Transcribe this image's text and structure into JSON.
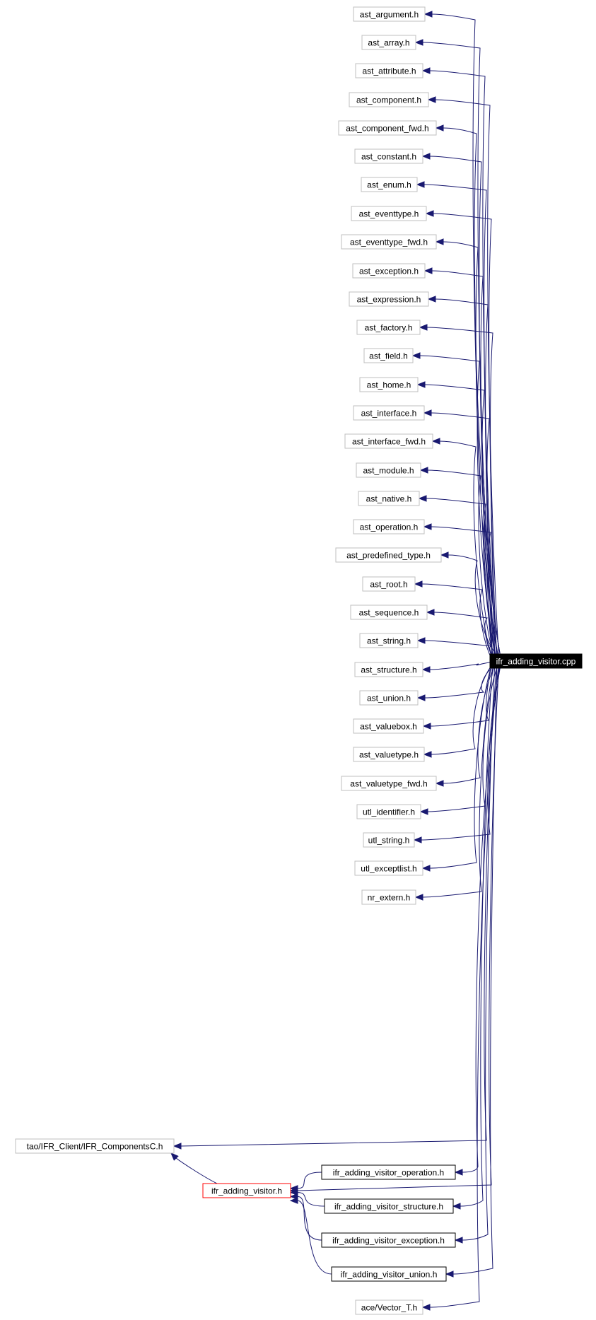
{
  "root": {
    "id": "root",
    "label": "ifr_adding_visitor.cpp"
  },
  "headers": [
    {
      "id": "h0",
      "label": "ast_argument.h"
    },
    {
      "id": "h1",
      "label": "ast_array.h"
    },
    {
      "id": "h2",
      "label": "ast_attribute.h"
    },
    {
      "id": "h3",
      "label": "ast_component.h"
    },
    {
      "id": "h4",
      "label": "ast_component_fwd.h"
    },
    {
      "id": "h5",
      "label": "ast_constant.h"
    },
    {
      "id": "h6",
      "label": "ast_enum.h"
    },
    {
      "id": "h7",
      "label": "ast_eventtype.h"
    },
    {
      "id": "h8",
      "label": "ast_eventtype_fwd.h"
    },
    {
      "id": "h9",
      "label": "ast_exception.h"
    },
    {
      "id": "h10",
      "label": "ast_expression.h"
    },
    {
      "id": "h11",
      "label": "ast_factory.h"
    },
    {
      "id": "h12",
      "label": "ast_field.h"
    },
    {
      "id": "h13",
      "label": "ast_home.h"
    },
    {
      "id": "h14",
      "label": "ast_interface.h"
    },
    {
      "id": "h15",
      "label": "ast_interface_fwd.h"
    },
    {
      "id": "h16",
      "label": "ast_module.h"
    },
    {
      "id": "h17",
      "label": "ast_native.h"
    },
    {
      "id": "h18",
      "label": "ast_operation.h"
    },
    {
      "id": "h19",
      "label": "ast_predefined_type.h"
    },
    {
      "id": "h20",
      "label": "ast_root.h"
    },
    {
      "id": "h21",
      "label": "ast_sequence.h"
    },
    {
      "id": "h22",
      "label": "ast_string.h"
    },
    {
      "id": "h23",
      "label": "ast_structure.h"
    },
    {
      "id": "h24",
      "label": "ast_union.h"
    },
    {
      "id": "h25",
      "label": "ast_valuebox.h"
    },
    {
      "id": "h26",
      "label": "ast_valuetype.h"
    },
    {
      "id": "h27",
      "label": "ast_valuetype_fwd.h"
    },
    {
      "id": "h28",
      "label": "utl_identifier.h"
    },
    {
      "id": "h29",
      "label": "utl_string.h"
    },
    {
      "id": "h30",
      "label": "utl_exceptlist.h"
    },
    {
      "id": "h31",
      "label": "nr_extern.h"
    }
  ],
  "lower_nodes": [
    {
      "id": "comp",
      "label": "tao/IFR_Client/IFR_ComponentsC.h",
      "style": "external"
    },
    {
      "id": "visitor",
      "label": "ifr_adding_visitor.h",
      "style": "highlight"
    },
    {
      "id": "op",
      "label": "ifr_adding_visitor_operation.h",
      "style": "normal"
    },
    {
      "id": "st",
      "label": "ifr_adding_visitor_structure.h",
      "style": "normal"
    },
    {
      "id": "ex",
      "label": "ifr_adding_visitor_exception.h",
      "style": "normal"
    },
    {
      "id": "un",
      "label": "ifr_adding_visitor_union.h",
      "style": "normal"
    },
    {
      "id": "vec",
      "label": "ace/Vector_T.h",
      "style": "external"
    }
  ],
  "edges": [
    {
      "from": "root",
      "to": "h0"
    },
    {
      "from": "root",
      "to": "h1"
    },
    {
      "from": "root",
      "to": "h2"
    },
    {
      "from": "root",
      "to": "h3"
    },
    {
      "from": "root",
      "to": "h4"
    },
    {
      "from": "root",
      "to": "h5"
    },
    {
      "from": "root",
      "to": "h6"
    },
    {
      "from": "root",
      "to": "h7"
    },
    {
      "from": "root",
      "to": "h8"
    },
    {
      "from": "root",
      "to": "h9"
    },
    {
      "from": "root",
      "to": "h10"
    },
    {
      "from": "root",
      "to": "h11"
    },
    {
      "from": "root",
      "to": "h12"
    },
    {
      "from": "root",
      "to": "h13"
    },
    {
      "from": "root",
      "to": "h14"
    },
    {
      "from": "root",
      "to": "h15"
    },
    {
      "from": "root",
      "to": "h16"
    },
    {
      "from": "root",
      "to": "h17"
    },
    {
      "from": "root",
      "to": "h18"
    },
    {
      "from": "root",
      "to": "h19"
    },
    {
      "from": "root",
      "to": "h20"
    },
    {
      "from": "root",
      "to": "h21"
    },
    {
      "from": "root",
      "to": "h22"
    },
    {
      "from": "root",
      "to": "h23"
    },
    {
      "from": "root",
      "to": "h24"
    },
    {
      "from": "root",
      "to": "h25"
    },
    {
      "from": "root",
      "to": "h26"
    },
    {
      "from": "root",
      "to": "h27"
    },
    {
      "from": "root",
      "to": "h28"
    },
    {
      "from": "root",
      "to": "h29"
    },
    {
      "from": "root",
      "to": "h30"
    },
    {
      "from": "root",
      "to": "h31"
    },
    {
      "from": "root",
      "to": "comp"
    },
    {
      "from": "root",
      "to": "visitor"
    },
    {
      "from": "root",
      "to": "op"
    },
    {
      "from": "root",
      "to": "st"
    },
    {
      "from": "root",
      "to": "ex"
    },
    {
      "from": "root",
      "to": "un"
    },
    {
      "from": "root",
      "to": "vec"
    },
    {
      "from": "visitor",
      "to": "comp"
    },
    {
      "from": "op",
      "to": "visitor"
    },
    {
      "from": "st",
      "to": "visitor"
    },
    {
      "from": "ex",
      "to": "visitor"
    },
    {
      "from": "un",
      "to": "visitor"
    }
  ],
  "colors": {
    "edge": "#191970",
    "node_border": "#bfbfbf",
    "highlight_border": "#ff0000",
    "root_fill": "#000000",
    "root_text": "#ffffff"
  }
}
